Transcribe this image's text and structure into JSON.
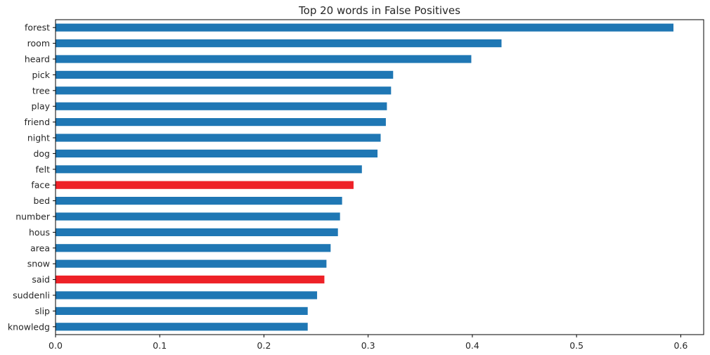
{
  "chart_data": {
    "type": "bar",
    "orientation": "horizontal",
    "title": "Top 20 words in False Positives",
    "xlabel": "",
    "ylabel": "",
    "xlim": [
      0,
      0.622
    ],
    "xticks": [
      0.0,
      0.1,
      0.2,
      0.3,
      0.4,
      0.5,
      0.6
    ],
    "xtick_labels": [
      "0.0",
      "0.1",
      "0.2",
      "0.3",
      "0.4",
      "0.5",
      "0.6"
    ],
    "grid": false,
    "legend": "none",
    "categories": [
      "forest",
      "room",
      "heard",
      "pick",
      "tree",
      "play",
      "friend",
      "night",
      "dog",
      "felt",
      "face",
      "bed",
      "number",
      "hous",
      "area",
      "snow",
      "said",
      "suddenli",
      "slip",
      "knowledg"
    ],
    "values": [
      0.593,
      0.428,
      0.399,
      0.324,
      0.322,
      0.318,
      0.317,
      0.312,
      0.309,
      0.294,
      0.286,
      0.275,
      0.273,
      0.271,
      0.264,
      0.26,
      0.258,
      0.251,
      0.242,
      0.242
    ],
    "highlighted": [
      "face",
      "said"
    ],
    "colors": {
      "bar": "#1f77b4",
      "highlight": "#ee2127",
      "axis": "#000000",
      "text": "#262626"
    }
  }
}
